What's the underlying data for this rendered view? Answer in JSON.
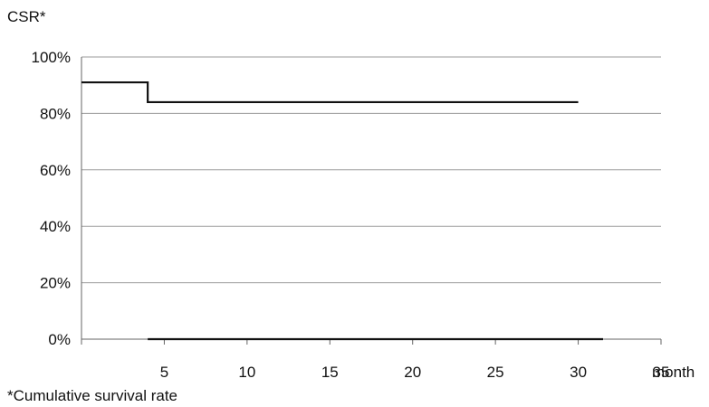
{
  "chart_data": {
    "type": "line",
    "ylabel": "CSR*",
    "xlabel": "month",
    "footnote": "*Cumulative survival rate",
    "xlim": [
      0,
      35
    ],
    "ylim": [
      0,
      100
    ],
    "x_ticks": [
      5,
      10,
      15,
      20,
      25,
      30,
      35
    ],
    "x_tick_labels": [
      "5",
      "10",
      "15",
      "20",
      "25",
      "30",
      "35"
    ],
    "y_ticks": [
      0,
      20,
      40,
      60,
      80,
      100
    ],
    "y_tick_labels": [
      "0%",
      "20%",
      "40%",
      "60%",
      "80%",
      "100%"
    ],
    "grid": true,
    "line_color": "#111111",
    "series": [
      {
        "step": true,
        "points": [
          [
            0,
            91
          ],
          [
            4,
            91
          ],
          [
            4,
            84
          ],
          [
            30,
            84
          ]
        ]
      },
      {
        "step": false,
        "points": [
          [
            4,
            0
          ],
          [
            31.5,
            0
          ]
        ]
      }
    ]
  }
}
